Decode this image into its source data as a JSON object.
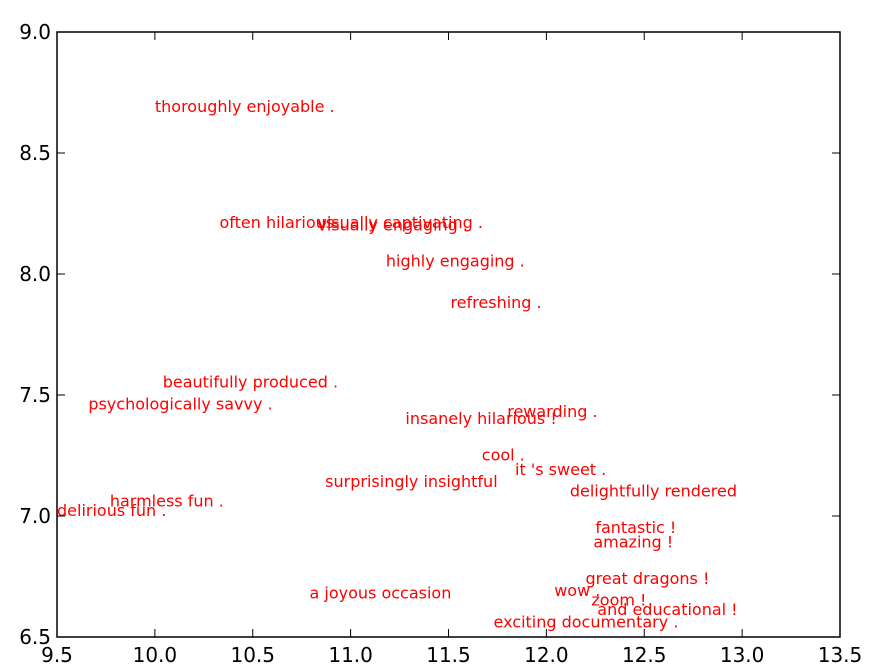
{
  "chart_data": {
    "type": "scatter",
    "title": "",
    "xlabel": "",
    "ylabel": "",
    "xlim": [
      9.5,
      13.5
    ],
    "ylim": [
      6.5,
      9.0
    ],
    "grid": false,
    "label_color": "#ff0000",
    "x_ticks": [
      "9.5",
      "10.0",
      "10.5",
      "11.0",
      "11.5",
      "12.0",
      "12.5",
      "13.0",
      "13.5"
    ],
    "y_ticks": [
      "6.5",
      "7.0",
      "7.5",
      "8.0",
      "8.5",
      "9.0"
    ],
    "points": [
      {
        "label": "thoroughly enjoyable .",
        "x": 10.0,
        "y": 8.67
      },
      {
        "label": "often hilarious .",
        "x": 10.33,
        "y": 8.19
      },
      {
        "label": "visually captivating .",
        "x": 10.83,
        "y": 8.19
      },
      {
        "label": "visually engaging .",
        "x": 10.83,
        "y": 8.18
      },
      {
        "label": "highly engaging .",
        "x": 11.18,
        "y": 8.03
      },
      {
        "label": "refreshing .",
        "x": 11.51,
        "y": 7.86
      },
      {
        "label": "beautifully produced .",
        "x": 10.04,
        "y": 7.53
      },
      {
        "label": "psychologically savvy .",
        "x": 9.66,
        "y": 7.44
      },
      {
        "label": "rewarding .",
        "x": 11.8,
        "y": 7.41
      },
      {
        "label": "insanely hilarious !",
        "x": 11.28,
        "y": 7.38
      },
      {
        "label": "cool .",
        "x": 11.67,
        "y": 7.23
      },
      {
        "label": "it 's sweet .",
        "x": 11.84,
        "y": 7.17
      },
      {
        "label": "surprisingly insightful",
        "x": 10.87,
        "y": 7.12
      },
      {
        "label": "delightfully rendered",
        "x": 12.12,
        "y": 7.08
      },
      {
        "label": "harmless fun .",
        "x": 9.77,
        "y": 7.04
      },
      {
        "label": "delirious fun .",
        "x": 9.5,
        "y": 7.0
      },
      {
        "label": "fantastic !",
        "x": 12.25,
        "y": 6.93
      },
      {
        "label": "amazing !",
        "x": 12.24,
        "y": 6.87
      },
      {
        "label": "great dragons !",
        "x": 12.2,
        "y": 6.72
      },
      {
        "label": "a joyous occasion",
        "x": 10.79,
        "y": 6.66
      },
      {
        "label": "wow .",
        "x": 12.04,
        "y": 6.67
      },
      {
        "label": "zoom !",
        "x": 12.23,
        "y": 6.63
      },
      {
        "label": "and educational !",
        "x": 12.26,
        "y": 6.59
      },
      {
        "label": "exciting documentary .",
        "x": 11.73,
        "y": 6.54
      }
    ]
  }
}
